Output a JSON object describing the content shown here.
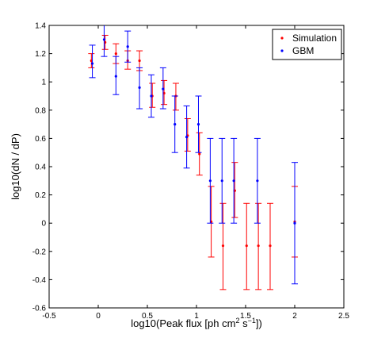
{
  "chart_data": {
    "type": "scatter",
    "xlabel_main": "log10(Peak flux [ph cm",
    "xlabel_sup1": "2",
    "xlabel_mid": " s",
    "xlabel_sup2": "−1",
    "xlabel_end": "])",
    "ylabel": "log10(dN / dP)",
    "xlim": [
      -0.5,
      2.5
    ],
    "ylim": [
      -0.6,
      1.4
    ],
    "xticks": [
      -0.5,
      0,
      0.5,
      1,
      1.5,
      2,
      2.5
    ],
    "xtick_labels": [
      "-0.5",
      "0",
      "0.5",
      "1",
      "1.5",
      "2",
      "2.5"
    ],
    "yticks": [
      -0.6,
      -0.4,
      -0.2,
      0,
      0.2,
      0.4,
      0.6,
      0.8,
      1,
      1.2,
      1.4
    ],
    "ytick_labels": [
      "-0.6",
      "-0.4",
      "-0.2",
      "0",
      "0.2",
      "0.4",
      "0.6",
      "0.8",
      "1",
      "1.2",
      "1.4"
    ],
    "grid": false,
    "legend_position": "top-right",
    "series": [
      {
        "name": "Simulation",
        "color": "#ff0000",
        "points": [
          {
            "x": -0.07,
            "y": 1.15,
            "lo": 1.1,
            "hi": 1.2
          },
          {
            "x": 0.07,
            "y": 1.28,
            "lo": 1.23,
            "hi": 1.33
          },
          {
            "x": 0.18,
            "y": 1.2,
            "lo": 1.13,
            "hi": 1.27
          },
          {
            "x": 0.3,
            "y": 1.15,
            "lo": 1.09,
            "hi": 1.22
          },
          {
            "x": 0.42,
            "y": 1.15,
            "lo": 1.08,
            "hi": 1.22
          },
          {
            "x": 0.55,
            "y": 0.9,
            "lo": 0.82,
            "hi": 0.99
          },
          {
            "x": 0.67,
            "y": 0.92,
            "lo": 0.84,
            "hi": 1.01
          },
          {
            "x": 0.79,
            "y": 0.9,
            "lo": 0.8,
            "hi": 0.99
          },
          {
            "x": 0.91,
            "y": 0.62,
            "lo": 0.51,
            "hi": 0.74
          },
          {
            "x": 1.03,
            "y": 0.49,
            "lo": 0.34,
            "hi": 0.64
          },
          {
            "x": 1.15,
            "y": 0.01,
            "lo": -0.24,
            "hi": 0.26
          },
          {
            "x": 1.27,
            "y": -0.16,
            "lo": -0.47,
            "hi": 0.14
          },
          {
            "x": 1.39,
            "y": 0.23,
            "lo": 0.04,
            "hi": 0.43
          },
          {
            "x": 1.51,
            "y": -0.16,
            "lo": -0.47,
            "hi": 0.14
          },
          {
            "x": 1.63,
            "y": -0.16,
            "lo": -0.47,
            "hi": 0.14
          },
          {
            "x": 1.75,
            "y": -0.16,
            "lo": -0.47,
            "hi": 0.14
          },
          {
            "x": 2.0,
            "y": 0.01,
            "lo": -0.24,
            "hi": 0.26
          }
        ]
      },
      {
        "name": "GBM",
        "color": "#0000ff",
        "points": [
          {
            "x": -0.06,
            "y": 1.13,
            "lo": 1.03,
            "hi": 1.26
          },
          {
            "x": 0.06,
            "y": 1.3,
            "lo": 1.18,
            "hi": 1.42
          },
          {
            "x": 0.18,
            "y": 1.04,
            "lo": 0.91,
            "hi": 1.18
          },
          {
            "x": 0.3,
            "y": 1.25,
            "lo": 1.14,
            "hi": 1.36
          },
          {
            "x": 0.42,
            "y": 0.96,
            "lo": 0.81,
            "hi": 1.1
          },
          {
            "x": 0.54,
            "y": 0.9,
            "lo": 0.75,
            "hi": 1.05
          },
          {
            "x": 0.66,
            "y": 0.95,
            "lo": 0.81,
            "hi": 1.1
          },
          {
            "x": 0.78,
            "y": 0.7,
            "lo": 0.5,
            "hi": 0.9
          },
          {
            "x": 0.9,
            "y": 0.61,
            "lo": 0.39,
            "hi": 0.83
          },
          {
            "x": 1.02,
            "y": 0.7,
            "lo": 0.5,
            "hi": 0.9
          },
          {
            "x": 1.14,
            "y": 0.3,
            "lo": 0.0,
            "hi": 0.6
          },
          {
            "x": 1.26,
            "y": 0.3,
            "lo": 0.0,
            "hi": 0.6
          },
          {
            "x": 1.38,
            "y": 0.3,
            "lo": 0.0,
            "hi": 0.6
          },
          {
            "x": 1.62,
            "y": 0.3,
            "lo": 0.0,
            "hi": 0.6
          },
          {
            "x": 2.0,
            "y": 0.0,
            "lo": -0.43,
            "hi": 0.43
          }
        ]
      }
    ]
  }
}
